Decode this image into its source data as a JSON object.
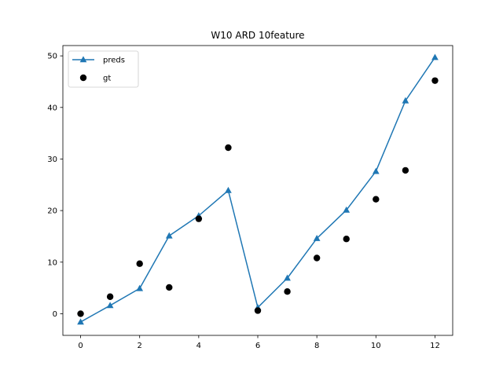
{
  "chart_data": {
    "type": "line",
    "title": "W10 ARD 10feature",
    "xlabel": "",
    "ylabel": "",
    "xlim": [
      -0.6,
      12.6
    ],
    "ylim": [
      -4.2,
      52.0
    ],
    "x_ticks": [
      0,
      2,
      4,
      6,
      8,
      10,
      12
    ],
    "y_ticks": [
      0,
      10,
      20,
      30,
      40,
      50
    ],
    "grid": false,
    "legend_position": "top-left",
    "series": [
      {
        "name": "preds",
        "kind": "line-with-triangle-markers",
        "color": "#1f77b4",
        "x": [
          0,
          1,
          2,
          3,
          4,
          5,
          6,
          7,
          8,
          9,
          10,
          11,
          12
        ],
        "y": [
          -1.6,
          1.6,
          4.9,
          15.1,
          19.0,
          23.9,
          1.2,
          6.9,
          14.6,
          20.1,
          27.6,
          41.3,
          49.7
        ]
      },
      {
        "name": "gt",
        "kind": "scatter",
        "color": "#000000",
        "x": [
          0,
          1,
          2,
          3,
          4,
          5,
          6,
          7,
          8,
          9,
          10,
          11,
          12
        ],
        "y": [
          0.0,
          3.3,
          9.7,
          5.1,
          18.4,
          32.2,
          0.6,
          4.3,
          10.8,
          14.5,
          22.2,
          27.8,
          45.2
        ]
      }
    ]
  }
}
